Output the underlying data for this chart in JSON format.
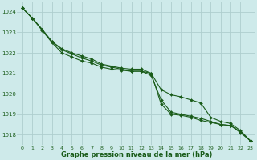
{
  "title": "Graphe pression niveau de la mer (hPa)",
  "bg_color": "#ceeaea",
  "grid_color": "#aecece",
  "line_color": "#1a5c1a",
  "xlim": [
    -0.5,
    23.5
  ],
  "ylim": [
    1017.5,
    1024.5
  ],
  "yticks": [
    1018,
    1019,
    1020,
    1021,
    1022,
    1023,
    1024
  ],
  "xticks": [
    0,
    1,
    2,
    3,
    4,
    5,
    6,
    7,
    8,
    9,
    10,
    11,
    12,
    13,
    14,
    15,
    16,
    17,
    18,
    19,
    20,
    21,
    22,
    23
  ],
  "line1": [
    1024.2,
    1023.7,
    1023.1,
    1022.5,
    1022.0,
    1021.8,
    1021.6,
    1021.5,
    1021.3,
    1021.2,
    1021.15,
    1021.1,
    1021.1,
    1020.9,
    1019.7,
    1019.1,
    1019.0,
    1018.9,
    1018.8,
    1018.65,
    1018.5,
    1018.45,
    1018.1,
    1017.7
  ],
  "line2": [
    1024.2,
    1023.7,
    1023.15,
    1022.55,
    1022.2,
    1022.0,
    1021.85,
    1021.7,
    1021.45,
    1021.35,
    1021.25,
    1021.2,
    1021.2,
    1021.0,
    1020.2,
    1019.95,
    1019.85,
    1019.7,
    1019.55,
    1018.85,
    1018.65,
    1018.55,
    1018.2,
    1017.7
  ],
  "line3": [
    1024.2,
    1023.7,
    1023.15,
    1022.55,
    1022.15,
    1021.95,
    1021.75,
    1021.6,
    1021.4,
    1021.3,
    1021.2,
    1021.1,
    1021.1,
    1021.0,
    1019.5,
    1019.0,
    1018.95,
    1018.85,
    1018.7,
    1018.6,
    1018.5,
    1018.45,
    1018.15,
    1017.7
  ],
  "tick_fontsize": 4.5,
  "xlabel_fontsize": 6.0,
  "ytick_fontsize": 5.0,
  "linewidth": 0.8,
  "markersize": 2.0
}
